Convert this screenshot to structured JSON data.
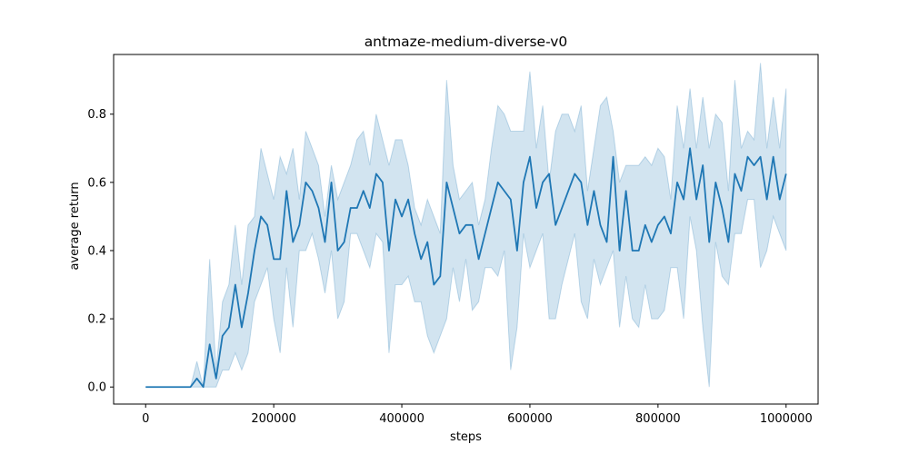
{
  "chart_data": {
    "type": "line",
    "title": "antmaze-medium-diverse-v0",
    "xlabel": "steps",
    "ylabel": "average return",
    "xlim": [
      -50000,
      1050000
    ],
    "ylim": [
      -0.05,
      0.975
    ],
    "xticks": [
      0,
      200000,
      400000,
      600000,
      800000,
      1000000
    ],
    "xtick_labels": [
      "0",
      "200000",
      "400000",
      "600000",
      "800000",
      "1000000"
    ],
    "yticks": [
      0.0,
      0.2,
      0.4,
      0.6,
      0.8
    ],
    "ytick_labels": [
      "0.0",
      "0.2",
      "0.4",
      "0.6",
      "0.8"
    ],
    "grid": false,
    "colors": {
      "line": "#1f77b4",
      "band": "#1f77b4"
    },
    "series": [
      {
        "x": [
          0,
          10000,
          20000,
          30000,
          40000,
          50000,
          60000,
          70000,
          80000,
          90000,
          100000,
          110000,
          120000,
          130000,
          140000,
          150000,
          160000,
          170000,
          180000,
          190000,
          200000,
          210000,
          220000,
          230000,
          240000,
          250000,
          260000,
          270000,
          280000,
          290000,
          300000,
          310000,
          320000,
          330000,
          340000,
          350000,
          360000,
          370000,
          380000,
          390000,
          400000,
          410000,
          420000,
          430000,
          440000,
          450000,
          460000,
          470000,
          480000,
          490000,
          500000,
          510000,
          520000,
          530000,
          540000,
          550000,
          560000,
          570000,
          580000,
          590000,
          600000,
          610000,
          620000,
          630000,
          640000,
          650000,
          660000,
          670000,
          680000,
          690000,
          700000,
          710000,
          720000,
          730000,
          740000,
          750000,
          760000,
          770000,
          780000,
          790000,
          800000,
          810000,
          820000,
          830000,
          840000,
          850000,
          860000,
          870000,
          880000,
          890000,
          900000,
          910000,
          920000,
          930000,
          940000,
          950000,
          960000,
          970000,
          980000,
          990000,
          1000000
        ],
        "y": [
          0,
          0,
          0,
          0,
          0,
          0,
          0,
          0,
          0.025,
          0,
          0.125,
          0.025,
          0.15,
          0.175,
          0.3,
          0.175,
          0.275,
          0.4,
          0.5,
          0.475,
          0.375,
          0.375,
          0.575,
          0.425,
          0.475,
          0.6,
          0.575,
          0.525,
          0.425,
          0.6,
          0.4,
          0.425,
          0.525,
          0.525,
          0.575,
          0.525,
          0.625,
          0.6,
          0.4,
          0.55,
          0.5,
          0.55,
          0.45,
          0.375,
          0.425,
          0.3,
          0.325,
          0.6,
          0.525,
          0.45,
          0.475,
          0.475,
          0.375,
          0.45,
          0.525,
          0.6,
          0.575,
          0.55,
          0.4,
          0.6,
          0.675,
          0.525,
          0.6,
          0.625,
          0.475,
          0.525,
          0.575,
          0.625,
          0.6,
          0.475,
          0.575,
          0.475,
          0.425,
          0.675,
          0.4,
          0.575,
          0.4,
          0.4,
          0.475,
          0.425,
          0.475,
          0.5,
          0.45,
          0.6,
          0.55,
          0.7,
          0.55,
          0.65,
          0.425,
          0.6,
          0.525,
          0.425,
          0.625,
          0.575,
          0.675,
          0.65,
          0.675,
          0.55,
          0.675,
          0.55,
          0.625
        ],
        "y_lower": [
          0,
          0,
          0,
          0,
          0,
          0,
          0,
          0,
          0,
          0,
          0,
          0,
          0.05,
          0.05,
          0.1,
          0.05,
          0.1,
          0.25,
          0.3,
          0.35,
          0.2,
          0.1,
          0.35,
          0.175,
          0.4,
          0.4,
          0.45,
          0.375,
          0.275,
          0.4,
          0.2,
          0.25,
          0.45,
          0.45,
          0.4,
          0.35,
          0.45,
          0.425,
          0.1,
          0.3,
          0.3,
          0.325,
          0.25,
          0.25,
          0.15,
          0.1,
          0.15,
          0.2,
          0.35,
          0.25,
          0.375,
          0.225,
          0.25,
          0.35,
          0.35,
          0.325,
          0.4,
          0.05,
          0.175,
          0.45,
          0.35,
          0.4,
          0.45,
          0.2,
          0.2,
          0.3,
          0.375,
          0.45,
          0.25,
          0.2,
          0.375,
          0.3,
          0.35,
          0.4,
          0.175,
          0.325,
          0.2,
          0.175,
          0.3,
          0.2,
          0.2,
          0.225,
          0.35,
          0.35,
          0.2,
          0.5,
          0.4,
          0.175,
          0,
          0.425,
          0.325,
          0.3,
          0.45,
          0.45,
          0.55,
          0.55,
          0.35,
          0.4,
          0.5,
          0.45,
          0.4
        ],
        "y_upper": [
          0,
          0,
          0,
          0,
          0,
          0,
          0,
          0,
          0.075,
          0,
          0.375,
          0.05,
          0.25,
          0.3,
          0.475,
          0.3,
          0.475,
          0.5,
          0.7,
          0.625,
          0.55,
          0.675,
          0.625,
          0.7,
          0.55,
          0.75,
          0.7,
          0.65,
          0.5,
          0.65,
          0.55,
          0.6,
          0.65,
          0.725,
          0.75,
          0.65,
          0.8,
          0.725,
          0.65,
          0.725,
          0.725,
          0.65,
          0.525,
          0.475,
          0.55,
          0.5,
          0.45,
          0.9,
          0.65,
          0.55,
          0.575,
          0.6,
          0.475,
          0.55,
          0.7,
          0.825,
          0.8,
          0.75,
          0.75,
          0.75,
          0.925,
          0.7,
          0.825,
          0.6,
          0.75,
          0.8,
          0.8,
          0.75,
          0.825,
          0.575,
          0.7,
          0.825,
          0.85,
          0.75,
          0.6,
          0.65,
          0.65,
          0.65,
          0.675,
          0.65,
          0.7,
          0.675,
          0.55,
          0.825,
          0.7,
          0.875,
          0.7,
          0.85,
          0.7,
          0.8,
          0.775,
          0.575,
          0.9,
          0.7,
          0.75,
          0.725,
          0.95,
          0.7,
          0.85,
          0.7,
          0.875
        ]
      }
    ]
  }
}
